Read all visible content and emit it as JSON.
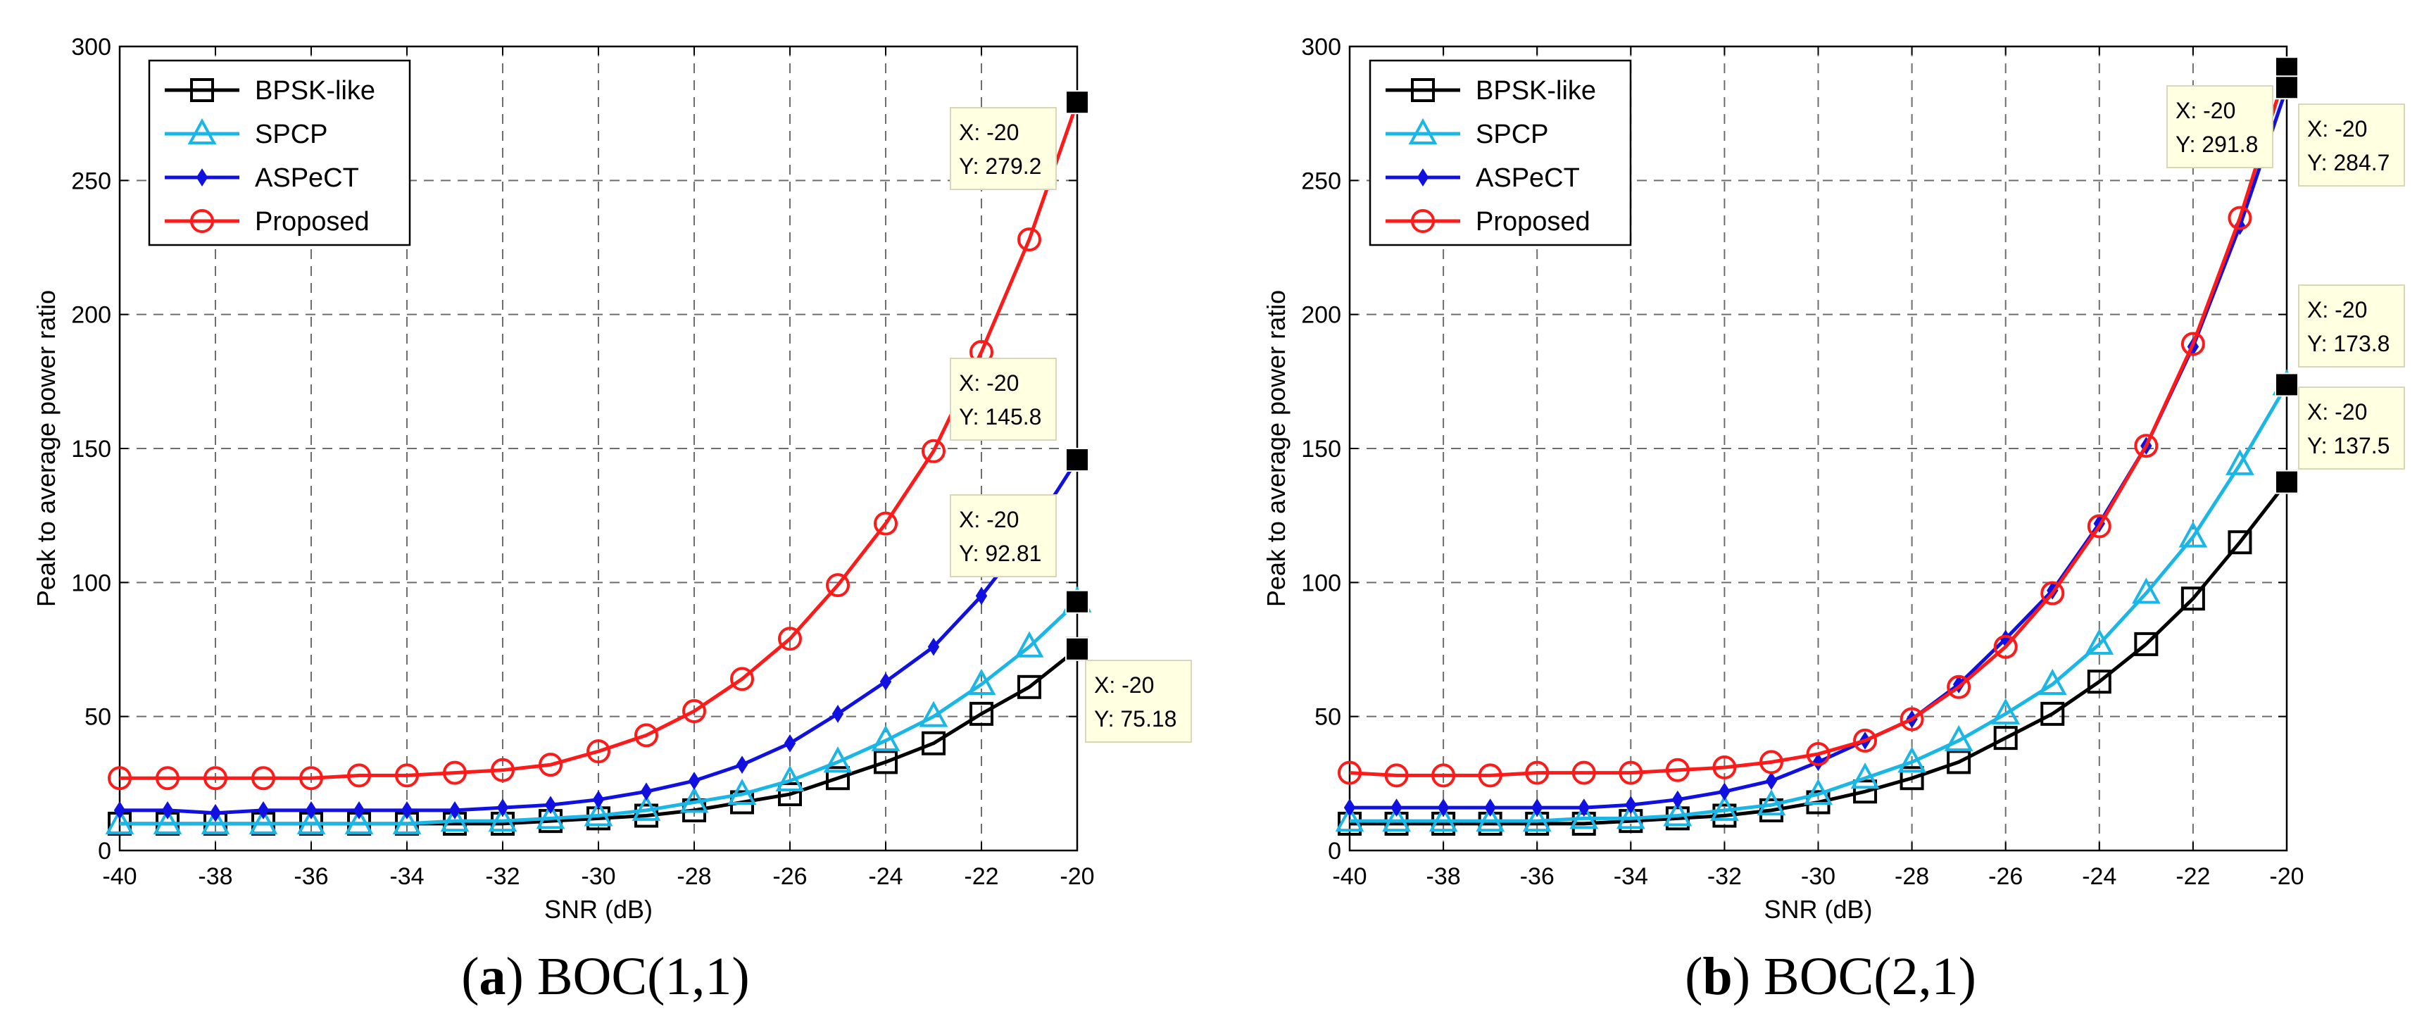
{
  "chart_data": [
    {
      "type": "line",
      "caption_letter": "a",
      "caption_text": "BOC(1,1)",
      "xlabel": "SNR (dB)",
      "ylabel": "Peak to average power ratio",
      "xlim": [
        -40,
        -20
      ],
      "ylim": [
        0,
        300
      ],
      "x_ticks": [
        -40,
        -38,
        -36,
        -34,
        -32,
        -30,
        -28,
        -26,
        -24,
        -22,
        -20
      ],
      "y_ticks": [
        0,
        50,
        100,
        150,
        200,
        250,
        300
      ],
      "grid": true,
      "legend_position": "top-left",
      "x": [
        -40,
        -39,
        -38,
        -37,
        -36,
        -35,
        -34,
        -33,
        -32,
        -31,
        -30,
        -29,
        -28,
        -27,
        -26,
        -25,
        -24,
        -23,
        -22,
        -21,
        -20
      ],
      "series": [
        {
          "name": "BPSK-like",
          "color": "#000000",
          "marker": "square",
          "values": [
            10,
            10,
            10,
            10,
            10,
            10,
            10,
            10,
            10,
            11,
            12,
            13,
            15,
            18,
            21,
            27,
            33,
            40,
            51,
            61,
            75.18
          ]
        },
        {
          "name": "SPCP",
          "color": "#1ab6e6",
          "marker": "triangle",
          "values": [
            10,
            10,
            10,
            10,
            10,
            10,
            10,
            11,
            11,
            12,
            13,
            15,
            18,
            21,
            26,
            33,
            41,
            50,
            62,
            76,
            92.81
          ]
        },
        {
          "name": "ASPeCT",
          "color": "#1010e0",
          "marker": "diamond",
          "values": [
            15,
            15,
            14,
            15,
            15,
            15,
            15,
            15,
            16,
            17,
            19,
            22,
            26,
            32,
            40,
            51,
            63,
            76,
            95,
            118,
            145.8
          ]
        },
        {
          "name": "Proposed",
          "color": "#ff1a1a",
          "marker": "circle",
          "values": [
            27,
            27,
            27,
            27,
            27,
            28,
            28,
            29,
            30,
            32,
            37,
            43,
            52,
            64,
            79,
            99,
            122,
            149,
            186,
            228,
            279.2
          ]
        }
      ],
      "annotations": [
        {
          "x": "X: -20",
          "y": "Y: 279.2",
          "value": 279.2
        },
        {
          "x": "X: -20",
          "y": "Y: 145.8",
          "value": 145.8
        },
        {
          "x": "X: -20",
          "y": "Y: 92.81",
          "value": 92.81
        },
        {
          "x": "X: -20",
          "y": "Y: 75.18",
          "value": 75.18
        }
      ]
    },
    {
      "type": "line",
      "caption_letter": "b",
      "caption_text": "BOC(2,1)",
      "xlabel": "SNR (dB)",
      "ylabel": "Peak to average power ratio",
      "xlim": [
        -40,
        -20
      ],
      "ylim": [
        0,
        300
      ],
      "x_ticks": [
        -40,
        -38,
        -36,
        -34,
        -32,
        -30,
        -28,
        -26,
        -24,
        -22,
        -20
      ],
      "y_ticks": [
        0,
        50,
        100,
        150,
        200,
        250,
        300
      ],
      "grid": true,
      "legend_position": "top-left",
      "x": [
        -40,
        -39,
        -38,
        -37,
        -36,
        -35,
        -34,
        -33,
        -32,
        -31,
        -30,
        -29,
        -28,
        -27,
        -26,
        -25,
        -24,
        -23,
        -22,
        -21,
        -20
      ],
      "series": [
        {
          "name": "BPSK-like",
          "color": "#000000",
          "marker": "square",
          "values": [
            10,
            10,
            10,
            10,
            10,
            10,
            11,
            12,
            13,
            15,
            18,
            22,
            27,
            33,
            42,
            51,
            63,
            77,
            94,
            115,
            137.5
          ]
        },
        {
          "name": "SPCP",
          "color": "#1ab6e6",
          "marker": "triangle",
          "values": [
            11,
            11,
            11,
            11,
            11,
            12,
            12,
            13,
            15,
            17,
            21,
            27,
            33,
            41,
            51,
            62,
            77,
            96,
            117,
            144,
            173.8
          ]
        },
        {
          "name": "ASPeCT",
          "color": "#1010e0",
          "marker": "diamond",
          "values": [
            16,
            16,
            16,
            16,
            16,
            16,
            17,
            19,
            22,
            26,
            33,
            41,
            49,
            62,
            79,
            97,
            122,
            151,
            188,
            233,
            284.7
          ]
        },
        {
          "name": "Proposed",
          "color": "#ff1a1a",
          "marker": "circle",
          "values": [
            29,
            28,
            28,
            28,
            29,
            29,
            29,
            30,
            31,
            33,
            36,
            41,
            49,
            61,
            76,
            96,
            121,
            151,
            189,
            236,
            291.8
          ]
        }
      ],
      "annotations": [
        {
          "x": "X: -20",
          "y": "Y: 291.8",
          "value": 291.8
        },
        {
          "x": "X: -20",
          "y": "Y: 284.7",
          "value": 284.7
        },
        {
          "x": "X: -20",
          "y": "Y: 173.8",
          "value": 173.8
        },
        {
          "x": "X: -20",
          "y": "Y: 137.5",
          "value": 137.5
        }
      ]
    }
  ]
}
